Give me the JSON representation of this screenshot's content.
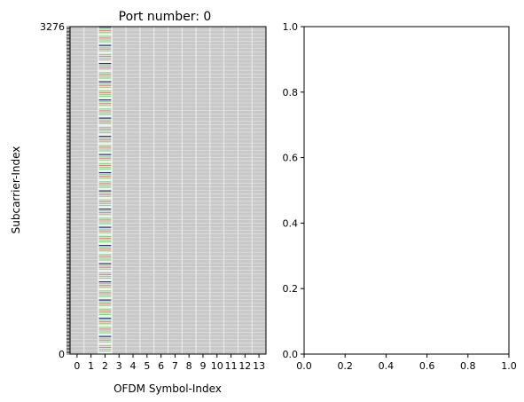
{
  "chart_data": [
    {
      "type": "heatmap",
      "title": "Port number: 0",
      "xlabel": "OFDM Symbol-Index",
      "ylabel": "Subcarrier-Index",
      "x_ticks": [
        "0",
        "1",
        "2",
        "3",
        "4",
        "5",
        "6",
        "7",
        "8",
        "9",
        "10",
        "11",
        "12",
        "13"
      ],
      "x_range": [
        0,
        14
      ],
      "y_range": [
        0,
        3276
      ],
      "y_tick_values": [
        0,
        3276
      ],
      "y_tick_labels": [
        "0",
        "3276"
      ],
      "y_tick_count": 273,
      "active_symbol": 2,
      "background_color": "#c8c8c8",
      "pilot_colors": [
        "#2c2f7a",
        "#e08080",
        "#90d090",
        "#f0f0f0"
      ],
      "grid": true
    },
    {
      "type": "scatter",
      "x_ticks": [
        "0.0",
        "0.2",
        "0.4",
        "0.6",
        "0.8",
        "1.0"
      ],
      "y_ticks": [
        "0.0",
        "0.2",
        "0.4",
        "0.6",
        "0.8",
        "1.0"
      ],
      "xlim": [
        0,
        1
      ],
      "ylim": [
        0,
        1
      ],
      "series": []
    }
  ]
}
